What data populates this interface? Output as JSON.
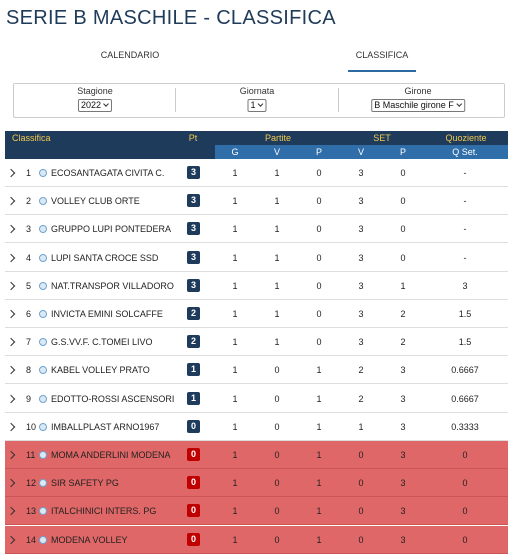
{
  "header": {
    "title": "SERIE B MASCHILE - CLASSIFICA"
  },
  "tabs": [
    "CALENDARIO",
    "CLASSIFICA"
  ],
  "filters": [
    {
      "label": "Stagione",
      "value": "2022"
    },
    {
      "label": "Giornata",
      "value": "1"
    },
    {
      "label": "Girone",
      "value": "B Maschile girone F"
    }
  ],
  "table": {
    "group_headers": [
      "Classifica",
      "Pt",
      "Partite",
      "SET",
      "Quoziente"
    ],
    "sub_headers": [
      "G",
      "V",
      "P",
      "V",
      "P",
      "Q Set."
    ],
    "rows": [
      [
        "1",
        "ECOSANTAGATA CIVITA C.",
        "3",
        "1",
        "1",
        "0",
        "3",
        "0",
        "-"
      ],
      [
        "2",
        "VOLLEY CLUB ORTE",
        "3",
        "1",
        "1",
        "0",
        "3",
        "0",
        "-"
      ],
      [
        "3",
        "GRUPPO LUPI PONTEDERA",
        "3",
        "1",
        "1",
        "0",
        "3",
        "0",
        "-"
      ],
      [
        "4",
        "LUPI SANTA CROCE SSD",
        "3",
        "1",
        "1",
        "0",
        "3",
        "0",
        "-"
      ],
      [
        "5",
        "NAT.TRANSPOR VILLADORO",
        "3",
        "1",
        "1",
        "0",
        "3",
        "1",
        "3"
      ],
      [
        "6",
        "INVICTA EMINI SOLCAFFE",
        "2",
        "1",
        "1",
        "0",
        "3",
        "2",
        "1.5"
      ],
      [
        "7",
        "G.S.VV.F. C.TOMEI LIVO",
        "2",
        "1",
        "1",
        "0",
        "3",
        "2",
        "1.5"
      ],
      [
        "8",
        "KABEL VOLLEY PRATO",
        "1",
        "1",
        "0",
        "1",
        "2",
        "3",
        "0.6667"
      ],
      [
        "9",
        "EDOTTO-ROSSI ASCENSORI",
        "1",
        "1",
        "0",
        "1",
        "2",
        "3",
        "0.6667"
      ],
      [
        "10",
        "IMBALLPLAST ARNO1967",
        "0",
        "1",
        "0",
        "1",
        "1",
        "3",
        "0.3333"
      ],
      [
        "11",
        "MOMA ANDERLINI MODENA",
        "0",
        "1",
        "0",
        "1",
        "0",
        "3",
        "0"
      ],
      [
        "12",
        "SIR SAFETY PG",
        "0",
        "1",
        "0",
        "1",
        "0",
        "3",
        "0"
      ],
      [
        "13",
        "ITALCHINICI INTERS. PG",
        "0",
        "1",
        "0",
        "1",
        "0",
        "3",
        "0"
      ],
      [
        "14",
        "MODENA VOLLEY",
        "0",
        "1",
        "0",
        "1",
        "0",
        "3",
        "0"
      ]
    ]
  }
}
